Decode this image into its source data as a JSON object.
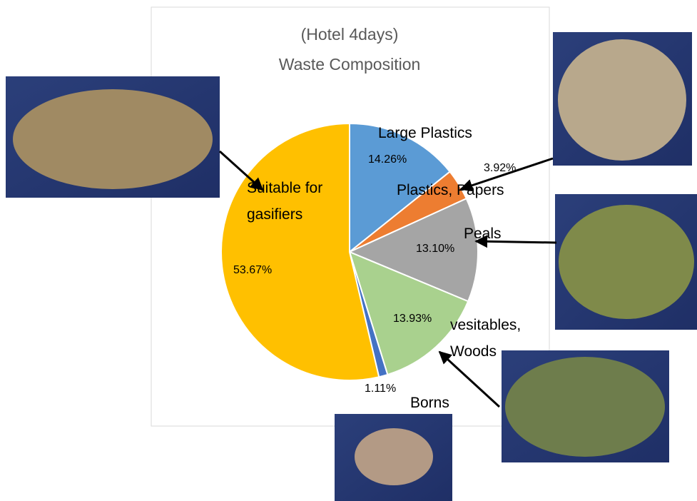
{
  "chart_data": {
    "type": "pie",
    "title": [
      "(Hotel   4days)",
      "Waste Composition"
    ],
    "categories": [
      "Large Plastics",
      "Plastics, Papers",
      "Peals",
      "vesitables, Woods",
      "Borns",
      "Suitable for gasifiers"
    ],
    "values": [
      14.26,
      3.92,
      13.1,
      13.93,
      1.11,
      53.67
    ],
    "value_labels": [
      "14.26%",
      "3.92%",
      "13.10%",
      "13.93%",
      "1.11%",
      "53.67%"
    ],
    "colors": [
      "#5b9bd5",
      "#ed7d31",
      "#a5a5a5",
      "#a9d18e",
      "#4472c4",
      "#ffc000"
    ]
  }
}
